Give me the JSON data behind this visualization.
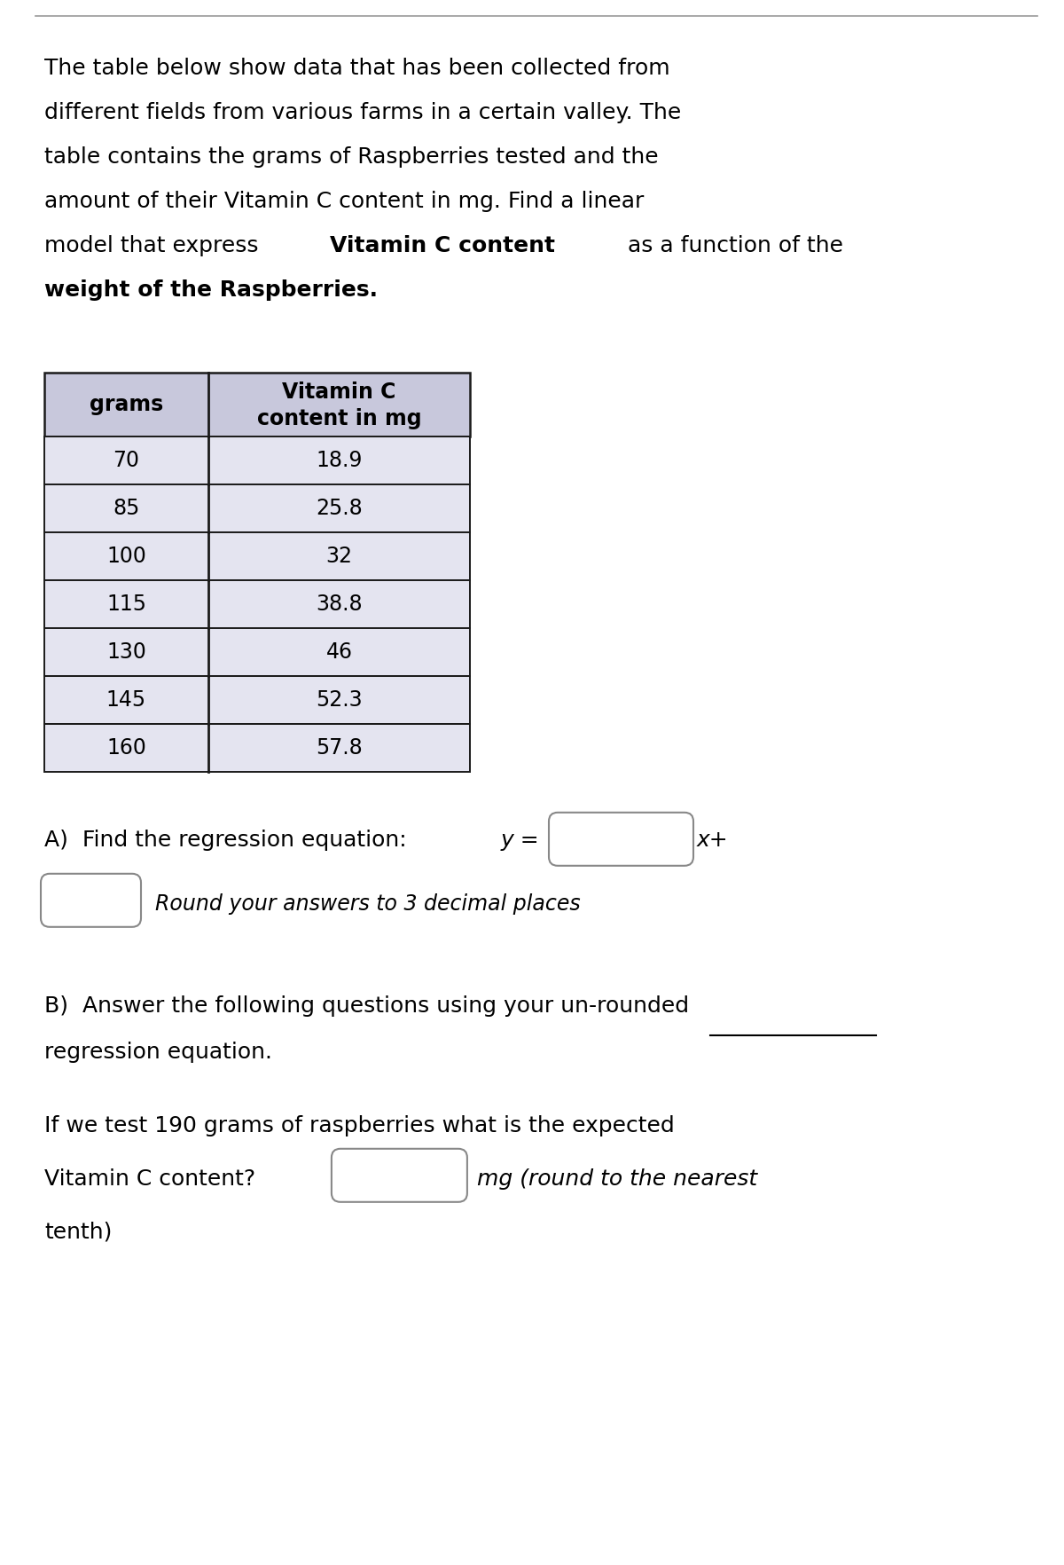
{
  "table_data": [
    [
      70,
      "18.9"
    ],
    [
      85,
      "25.8"
    ],
    [
      100,
      "32"
    ],
    [
      115,
      "38.8"
    ],
    [
      130,
      "46"
    ],
    [
      145,
      "52.3"
    ],
    [
      160,
      "57.8"
    ]
  ],
  "bg_color": "#ffffff",
  "text_color": "#000000",
  "table_header_bg": "#c8c8dc",
  "table_row_bg": "#e4e4f0",
  "table_border_color": "#1a1a1a",
  "top_border_color": "#999999",
  "intro_font_size": 18,
  "table_font_size": 17,
  "body_font_size": 18
}
